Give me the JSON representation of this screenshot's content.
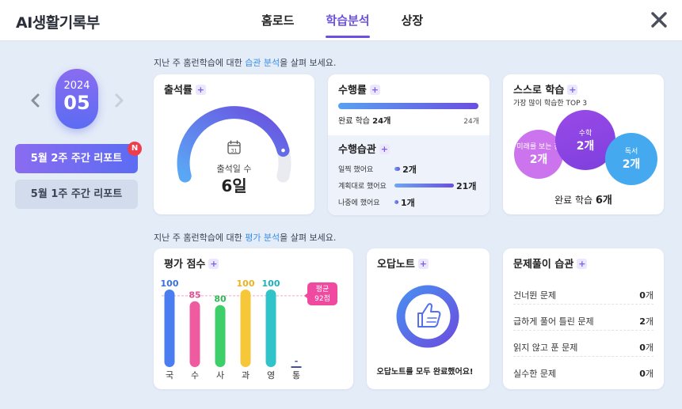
{
  "app": {
    "title": "AI생활기록부"
  },
  "nav": {
    "tabs": [
      "홈로드",
      "학습분석",
      "상장"
    ],
    "active": "학습분석"
  },
  "date": {
    "year": "2024",
    "month": "05"
  },
  "reports": {
    "active": "5월 2주 주간 리포트",
    "inactive": "5월 1주 주간 리포트",
    "badge": "N"
  },
  "caption_study": {
    "prefix": "지난 주 홈런학습에 대한 ",
    "highlight": "습관 분석",
    "suffix": "을 살펴 보세요."
  },
  "caption_eval": {
    "prefix": "지난 주 홈런학습에 대한 ",
    "highlight": "평가 분석",
    "suffix": "을 살펴 보세요."
  },
  "attendance": {
    "title": "출석률",
    "icon_day": "31",
    "days_label": "출석일 수",
    "days_value": "6일",
    "rate": 0.86
  },
  "performance": {
    "title": "수행률",
    "complete_label": "완료 학습",
    "complete_value": "24개",
    "total": "24개",
    "ratio": 1.0,
    "habit_title": "수행습관",
    "habits": [
      {
        "label": "일찍 했어요",
        "value": "2개",
        "count": 2
      },
      {
        "label": "계획대로 했어요",
        "value": "21개",
        "count": 21
      },
      {
        "label": "나중에 했어요",
        "value": "1개",
        "count": 1
      }
    ]
  },
  "self_study": {
    "title": "스스로 학습",
    "subtitle": "가장 많이 학습한 TOP 3",
    "bubbles": [
      {
        "label": "미래를 보는 창",
        "value": "2개"
      },
      {
        "label": "수학",
        "value": "2개"
      },
      {
        "label": "독서",
        "value": "2개"
      }
    ],
    "total_label": "완료 학습",
    "total_value": "6개"
  },
  "evaluation": {
    "title": "평가 점수",
    "avg_label": "평균",
    "avg_value": "92점"
  },
  "chart_data": {
    "type": "bar",
    "categories": [
      "국",
      "수",
      "사",
      "과",
      "영",
      "통"
    ],
    "values": [
      100,
      85,
      80,
      100,
      100,
      null
    ],
    "value_labels": [
      "100",
      "85",
      "80",
      "100",
      "100",
      "-"
    ],
    "bar_colors": [
      "#4a7ef0",
      "#ee5ba0",
      "#3ecf6a",
      "#f7c73a",
      "#30c3c9",
      "#3f4fa8"
    ],
    "label_colors": [
      "#3a6fdf",
      "#e24d93",
      "#2fb957",
      "#e8b322",
      "#21b0b6",
      "#3f4fa8"
    ],
    "ylim": [
      0,
      100
    ],
    "average": 92,
    "title": "평가 점수",
    "xlabel": "",
    "ylabel": ""
  },
  "wrong_note": {
    "title": "오답노트",
    "message": "오답노트를 모두 완료했어요!"
  },
  "problem_habits": {
    "title": "문제풀이 습관",
    "rows": [
      {
        "label": "건너뛴 문제",
        "num": "0",
        "unit": "개"
      },
      {
        "label": "급하게 풀어 틀린 문제",
        "num": "2",
        "unit": "개"
      },
      {
        "label": "읽지 않고 푼 문제",
        "num": "0",
        "unit": "개"
      },
      {
        "label": "실수한 문제",
        "num": "0",
        "unit": "개"
      }
    ]
  },
  "colors": {
    "accent": "#6a4fe0",
    "highlight": "#3a8ee6",
    "badge": "#ef3d4c",
    "background": "#e4ecf8"
  }
}
